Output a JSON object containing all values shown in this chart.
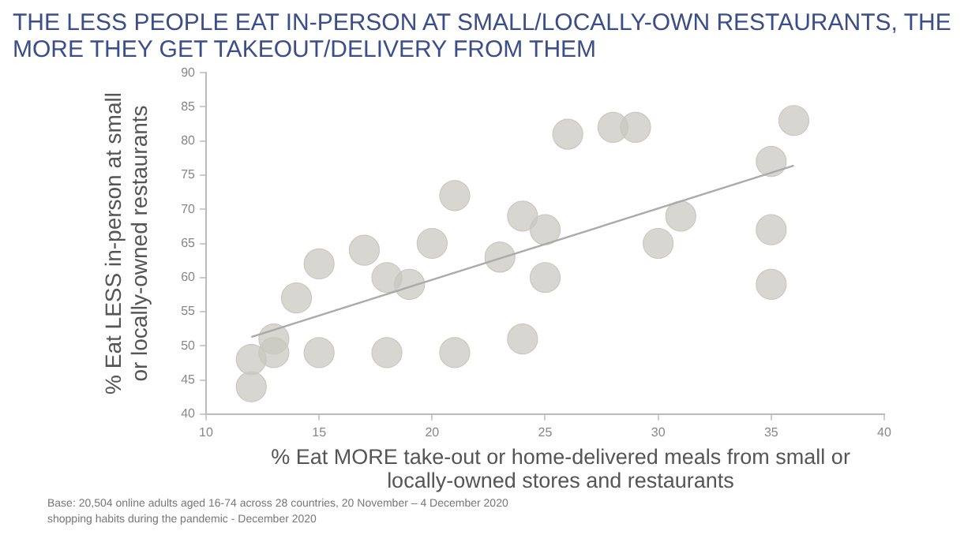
{
  "chart_data": {
    "type": "scatter",
    "title": "THE LESS PEOPLE EAT IN-PERSON AT SMALL/LOCALLY-OWN RESTAURANTS, THE MORE THEY GET TAKEOUT/DELIVERY FROM THEM",
    "xlabel": "% Eat MORE take-out or home-delivered meals from small or locally-owned stores and restaurants",
    "ylabel": "% Eat LESS in-person at small or locally-owned restaurants",
    "series": [
      {
        "type": "scatter",
        "color": "#c9c7bf",
        "marker": "circle",
        "x": [
          12,
          12,
          13,
          13,
          14,
          15,
          15,
          17,
          18,
          18,
          19,
          20,
          21,
          21,
          23,
          24,
          24,
          25,
          25,
          26,
          28,
          29,
          30,
          31,
          35,
          35,
          35,
          36
        ],
        "values": [
          48,
          44,
          51,
          49,
          57,
          62,
          49,
          64,
          60,
          49,
          59,
          65,
          72,
          49,
          63,
          69,
          51,
          67,
          60,
          81,
          82,
          82,
          65,
          69,
          77,
          67,
          59,
          83
        ]
      },
      {
        "type": "line",
        "color": "#aaaaaa",
        "marker": "none",
        "x": [
          12,
          36
        ],
        "values": [
          51.3,
          76.4
        ]
      }
    ],
    "xlim": [
      10,
      40
    ],
    "xticks": [
      10,
      15,
      20,
      25,
      30,
      35,
      40
    ],
    "ylim": [
      40,
      90
    ],
    "yticks": [
      40,
      45,
      50,
      55,
      60,
      65,
      70,
      75,
      80,
      85,
      90
    ],
    "grid": false,
    "legend": false,
    "annotations": [
      "Base: 20,504 online adults aged 16-74 across 28 countries,  20 November – 4 December 2020",
      "shopping habits during the pandemic - December 2020"
    ]
  }
}
